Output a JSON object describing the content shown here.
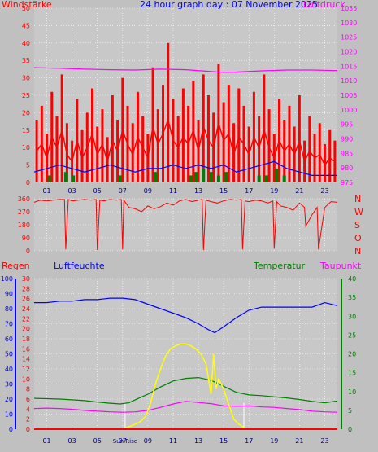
{
  "colors": {
    "background": "#c0c0c0",
    "plot_bg": "#c8c8c8",
    "grid": "#ffffff",
    "wind": "#ff0000",
    "gust": "#ff0000",
    "avg_wind": "#0000ff",
    "calm": "#008000",
    "pressure": "#ff00ff",
    "direction": "#ff0000",
    "rain": "#ff0000",
    "humidity": "#0000ff",
    "temperature": "#008000",
    "dewpoint": "#ff00ff",
    "solar": "#ffff00",
    "sun_marker": "#ffffff",
    "ticks_dark": "#000080"
  },
  "chart_data": [
    {
      "type": "line",
      "title": "24 hour graph day : 07 November 2025",
      "left_axis_label": "Windstärke",
      "right_axis_label": "Luftdruck",
      "x_tick_labels": [
        "01",
        "03",
        "05",
        "07",
        "09",
        "11",
        "13",
        "15",
        "17",
        "19",
        "21",
        "23"
      ],
      "x_tick_hours": [
        1,
        3,
        5,
        7,
        9,
        11,
        13,
        15,
        17,
        19,
        21,
        23
      ],
      "x_range_hours": [
        0,
        24
      ],
      "left_range": [
        0,
        50
      ],
      "left_ticks": [
        0,
        5,
        10,
        15,
        20,
        25,
        30,
        35,
        40,
        45,
        50
      ],
      "right_range": [
        975,
        1035
      ],
      "right_ticks": [
        975,
        980,
        985,
        990,
        995,
        1000,
        1005,
        1010,
        1015,
        1020,
        1025,
        1030,
        1035
      ],
      "grid": true,
      "series": [
        {
          "role": "gust",
          "axis": "left",
          "x": [
            0.2,
            0.6,
            1.0,
            1.4,
            1.8,
            2.2,
            2.6,
            3.0,
            3.4,
            3.8,
            4.2,
            4.6,
            5.0,
            5.4,
            5.8,
            6.2,
            6.6,
            7.0,
            7.4,
            7.8,
            8.2,
            8.6,
            9.0,
            9.4,
            9.8,
            10.2,
            10.6,
            11.0,
            11.4,
            11.8,
            12.2,
            12.6,
            13.0,
            13.4,
            13.8,
            14.2,
            14.6,
            15.0,
            15.4,
            15.8,
            16.2,
            16.6,
            17.0,
            17.4,
            17.8,
            18.2,
            18.6,
            19.0,
            19.4,
            19.8,
            20.2,
            20.6,
            21.0,
            21.4,
            21.8,
            22.2,
            22.6,
            23.0,
            23.4,
            23.8
          ],
          "y": [
            18,
            22,
            14,
            26,
            19,
            31,
            17,
            12,
            24,
            15,
            20,
            27,
            16,
            21,
            13,
            25,
            18,
            30,
            22,
            17,
            26,
            19,
            14,
            33,
            21,
            28,
            40,
            24,
            19,
            27,
            22,
            29,
            18,
            31,
            25,
            20,
            34,
            23,
            28,
            17,
            27,
            22,
            16,
            26,
            19,
            31,
            21,
            14,
            24,
            18,
            22,
            16,
            25,
            12,
            19,
            14,
            17,
            11,
            15,
            12
          ]
        },
        {
          "role": "wind",
          "axis": "left",
          "x": [
            0.2,
            0.6,
            1.0,
            1.4,
            1.8,
            2.2,
            2.6,
            3.0,
            3.4,
            3.8,
            4.2,
            4.6,
            5.0,
            5.4,
            5.8,
            6.2,
            6.6,
            7.0,
            7.4,
            7.8,
            8.2,
            8.6,
            9.0,
            9.4,
            9.8,
            10.2,
            10.6,
            11.0,
            11.4,
            11.8,
            12.2,
            12.6,
            13.0,
            13.4,
            13.8,
            14.2,
            14.6,
            15.0,
            15.4,
            15.8,
            16.2,
            16.6,
            17.0,
            17.4,
            17.8,
            18.2,
            18.6,
            19.0,
            19.4,
            19.8,
            20.2,
            20.6,
            21.0,
            21.4,
            21.8,
            22.2,
            22.6,
            23.0,
            23.4,
            23.8
          ],
          "y": [
            9,
            11,
            7,
            13,
            10,
            15,
            8,
            6,
            12,
            7,
            10,
            14,
            8,
            11,
            6,
            12,
            9,
            15,
            11,
            8,
            13,
            10,
            7,
            16,
            11,
            14,
            18,
            12,
            10,
            13,
            11,
            15,
            9,
            16,
            12,
            10,
            17,
            12,
            14,
            8,
            13,
            11,
            8,
            13,
            10,
            15,
            10,
            7,
            12,
            9,
            11,
            8,
            12,
            6,
            9,
            7,
            8,
            5,
            7,
            6
          ]
        },
        {
          "role": "avg_wind",
          "axis": "left",
          "x": [
            0,
            1,
            2,
            3,
            4,
            5,
            6,
            7,
            8,
            9,
            10,
            11,
            12,
            13,
            14,
            15,
            16,
            17,
            18,
            19,
            20,
            21,
            22,
            23,
            24
          ],
          "y": [
            3,
            4,
            5,
            4,
            3,
            4,
            5,
            4,
            3,
            4,
            4,
            5,
            4,
            5,
            4,
            5,
            3,
            4,
            5,
            6,
            4,
            3,
            2,
            2,
            2
          ]
        },
        {
          "role": "calm",
          "axis": "left",
          "x": [
            1.2,
            2.5,
            3.1,
            6.8,
            9.6,
            12.4,
            12.8,
            13.4,
            14.0,
            14.6,
            15.2,
            17.8,
            18.4,
            19.2,
            19.8
          ],
          "y": [
            2,
            3,
            2,
            2,
            3,
            2,
            3,
            4,
            3,
            2,
            3,
            2,
            2,
            4,
            2
          ]
        },
        {
          "role": "pressure",
          "axis": "right",
          "x": [
            0,
            2,
            4,
            6,
            8,
            10,
            12,
            14,
            15,
            16,
            18,
            20,
            22,
            24
          ],
          "y": [
            1014.5,
            1014.3,
            1014.0,
            1013.8,
            1013.7,
            1014.0,
            1013.8,
            1013.2,
            1012.9,
            1013.0,
            1013.4,
            1013.7,
            1013.7,
            1013.5
          ]
        }
      ]
    },
    {
      "type": "scatter",
      "right_axis_letters": [
        "N",
        "W",
        "S",
        "O",
        "N"
      ],
      "left_range": [
        0,
        360
      ],
      "left_ticks": [
        0,
        90,
        180,
        270,
        360
      ],
      "x_range_hours": [
        0,
        24
      ],
      "grid": true,
      "series": [
        {
          "role": "direction",
          "x": [
            0.0,
            0.5,
            1.0,
            1.5,
            2.0,
            2.4,
            2.5,
            2.7,
            3.0,
            3.5,
            4.0,
            4.5,
            4.9,
            5.0,
            5.2,
            5.5,
            6.0,
            6.5,
            6.9,
            7.0,
            7.1,
            7.5,
            8.0,
            8.5,
            9.0,
            9.5,
            10.0,
            10.5,
            11.0,
            11.5,
            12.0,
            12.5,
            13.0,
            13.3,
            13.4,
            13.6,
            14.0,
            14.5,
            15.0,
            15.5,
            16.0,
            16.4,
            16.5,
            16.7,
            17.0,
            17.5,
            18.0,
            18.5,
            18.9,
            19.0,
            19.2,
            19.5,
            20.0,
            20.5,
            21.0,
            21.4,
            21.5,
            22.0,
            22.4,
            22.5,
            23.0,
            23.5,
            24.0
          ],
          "y": [
            335,
            350,
            345,
            350,
            355,
            355,
            10,
            355,
            345,
            350,
            355,
            350,
            355,
            5,
            350,
            345,
            355,
            350,
            355,
            10,
            350,
            300,
            290,
            270,
            310,
            290,
            305,
            330,
            315,
            345,
            355,
            340,
            350,
            355,
            5,
            350,
            340,
            330,
            345,
            355,
            350,
            355,
            10,
            345,
            340,
            350,
            345,
            330,
            345,
            15,
            340,
            310,
            300,
            280,
            330,
            300,
            170,
            250,
            300,
            10,
            300,
            340,
            335
          ]
        }
      ]
    },
    {
      "type": "line",
      "left_axis_labels": [
        "Regen",
        "Luftfeuchte"
      ],
      "right_axis_labels": [
        "Temperatur",
        "Taupunkt"
      ],
      "rain_range": [
        0,
        30
      ],
      "rain_ticks": [
        0,
        2,
        4,
        6,
        8,
        10,
        12,
        14,
        16,
        18,
        20,
        22,
        24,
        26,
        28,
        30
      ],
      "humidity_range": [
        0,
        100
      ],
      "humidity_ticks": [
        0,
        10,
        20,
        30,
        40,
        50,
        60,
        70,
        80,
        90,
        100
      ],
      "temp_range": [
        0,
        40
      ],
      "temp_ticks": [
        0,
        5,
        10,
        15,
        20,
        25,
        30,
        35,
        40
      ],
      "x_tick_labels": [
        "01",
        "03",
        "05",
        "07",
        "09",
        "11",
        "13",
        "15",
        "17",
        "19",
        "21",
        "23"
      ],
      "x_tick_hours": [
        1,
        3,
        5,
        7,
        9,
        11,
        13,
        15,
        17,
        19,
        21,
        23
      ],
      "x_range_hours": [
        0,
        24
      ],
      "sun_label": "Sun Rise",
      "grid": true,
      "series": [
        {
          "role": "humidity",
          "axis": "humidity",
          "x": [
            0,
            1,
            2,
            3,
            4,
            5,
            6,
            7,
            8,
            9,
            10,
            11,
            12,
            13,
            13.8,
            14.3,
            15,
            16,
            17,
            18,
            19,
            20,
            21,
            22,
            23,
            24
          ],
          "y": [
            84,
            84,
            85,
            85,
            86,
            86,
            87,
            87,
            86,
            83,
            80,
            77,
            74,
            70,
            66,
            64,
            68,
            74,
            79,
            81,
            81,
            81,
            81,
            81,
            84,
            82
          ]
        },
        {
          "role": "temperature",
          "axis": "temp",
          "x": [
            0,
            1,
            2,
            3,
            4,
            5,
            6,
            6.8,
            7.5,
            8,
            9,
            10,
            11,
            12,
            13,
            14,
            15,
            16,
            17,
            18,
            19,
            20,
            21,
            22,
            23,
            24
          ],
          "y": [
            8.2,
            8.1,
            8.0,
            7.8,
            7.6,
            7.2,
            6.9,
            6.7,
            7.0,
            7.8,
            9.3,
            11.2,
            12.8,
            13.5,
            13.7,
            13.0,
            11.4,
            9.8,
            9.1,
            8.9,
            8.6,
            8.3,
            7.9,
            7.4,
            7.0,
            7.5
          ]
        },
        {
          "role": "dewpoint",
          "axis": "temp",
          "x": [
            0,
            1,
            2,
            3,
            4,
            5,
            6,
            7,
            8,
            9,
            10,
            11,
            12,
            13,
            14,
            15,
            16,
            17,
            18,
            19,
            20,
            21,
            22,
            23,
            24
          ],
          "y": [
            5.5,
            5.6,
            5.5,
            5.3,
            5.0,
            4.8,
            4.6,
            4.5,
            4.6,
            5.0,
            5.8,
            6.7,
            7.4,
            7.1,
            6.8,
            6.2,
            6.1,
            6.2,
            5.9,
            5.8,
            5.5,
            5.2,
            4.8,
            4.6,
            4.5
          ]
        },
        {
          "role": "solar",
          "axis": "rain",
          "x": [
            7.0,
            7.3,
            7.6,
            8.0,
            8.4,
            8.8,
            9.2,
            9.6,
            10.0,
            10.4,
            10.8,
            11.2,
            11.6,
            12.0,
            12.4,
            12.8,
            13.2,
            13.6,
            14.0,
            14.2,
            14.4,
            14.6,
            15.0,
            15.4,
            15.8,
            16.2,
            16.6,
            17.0
          ],
          "y": [
            0,
            0.3,
            0.6,
            1,
            1.5,
            2.5,
            5,
            9,
            12,
            14.5,
            16,
            16.6,
            17,
            17,
            16.6,
            16,
            15,
            13,
            7,
            15,
            8,
            10,
            8,
            5,
            2,
            1,
            0.3,
            0
          ]
        },
        {
          "role": "rain",
          "axis": "rain",
          "x": [
            0,
            24
          ],
          "y": [
            0,
            0
          ]
        }
      ]
    }
  ]
}
